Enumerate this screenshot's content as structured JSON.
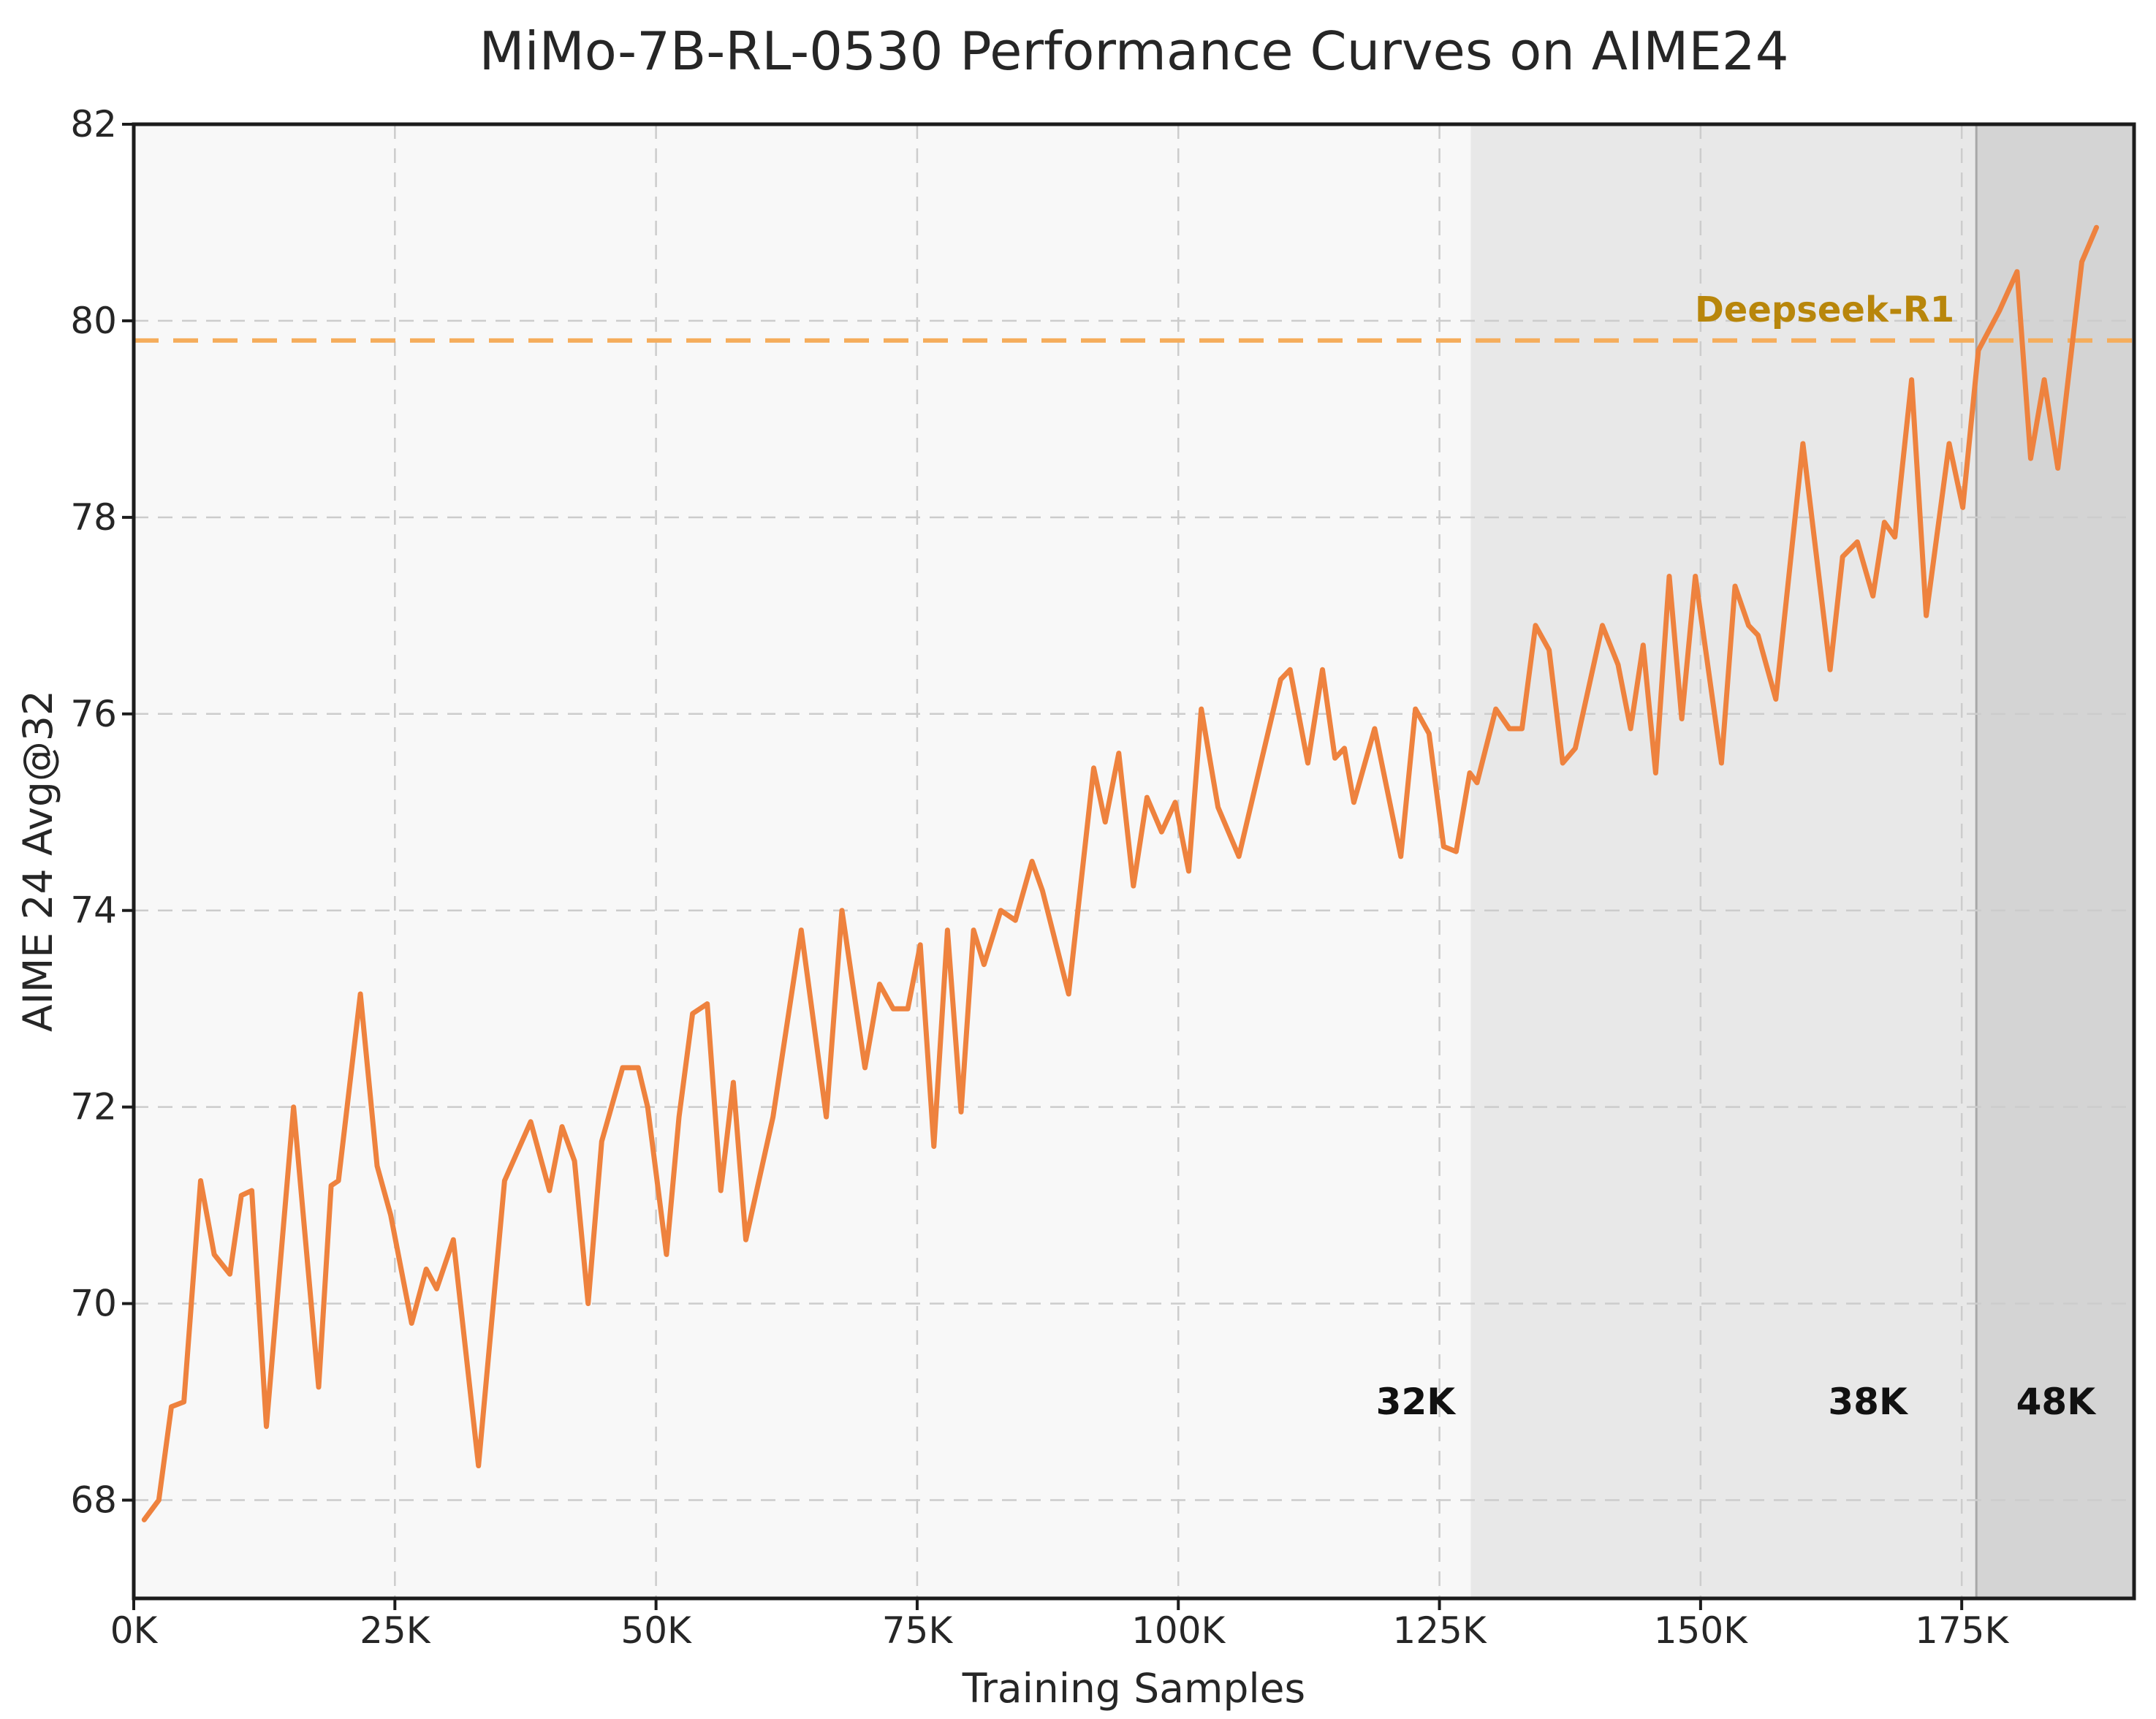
{
  "figure": {
    "title": "MiMo-7B-RL-0530 Performance Curves on AIME24",
    "background_color": "#ffffff",
    "plot_background_color": "#f8f8f8",
    "spine_color": "#1c1c1c",
    "grid_color": "#cccccc",
    "text_color": "#262626"
  },
  "chart_data": {
    "type": "line",
    "title": "MiMo-7B-RL-0530 Performance Curves on AIME24",
    "xlabel": "Training Samples",
    "ylabel": "AIME 24 Avg@32",
    "xlim": [
      0,
      191.5
    ],
    "ylim": [
      67,
      82
    ],
    "grid": true,
    "xticks": {
      "values": [
        0,
        25,
        50,
        75,
        100,
        125,
        150,
        175
      ],
      "labels": [
        "0K",
        "25K",
        "50K",
        "75K",
        "100K",
        "125K",
        "150K",
        "175K"
      ]
    },
    "yticks": [
      68,
      70,
      72,
      74,
      76,
      78,
      80,
      82
    ],
    "series": [
      {
        "name": "MiMo-7B-RL-0530",
        "color": "#ee823e",
        "line_width": 7,
        "points": [
          [
            1,
            67.8
          ],
          [
            2.4,
            68
          ],
          [
            3.6,
            68.95
          ],
          [
            4.8,
            69
          ],
          [
            6.4,
            71.25
          ],
          [
            7.7,
            70.5
          ],
          [
            9.2,
            70.3
          ],
          [
            10.3,
            71.1
          ],
          [
            11.3,
            71.15
          ],
          [
            12.7,
            68.75
          ],
          [
            15.3,
            72
          ],
          [
            17.7,
            69.15
          ],
          [
            18.9,
            71.2
          ],
          [
            19.6,
            71.25
          ],
          [
            21.7,
            73.15
          ],
          [
            23.3,
            71.4
          ],
          [
            24.6,
            70.9
          ],
          [
            26.6,
            69.8
          ],
          [
            28,
            70.35
          ],
          [
            29,
            70.15
          ],
          [
            30.6,
            70.65
          ],
          [
            33,
            68.35
          ],
          [
            35.5,
            71.25
          ],
          [
            38,
            71.85
          ],
          [
            39.8,
            71.15
          ],
          [
            41,
            71.8
          ],
          [
            42.2,
            71.45
          ],
          [
            43.5,
            70
          ],
          [
            44.8,
            71.65
          ],
          [
            46.8,
            72.4
          ],
          [
            48.3,
            72.4
          ],
          [
            49.2,
            72
          ],
          [
            51,
            70.5
          ],
          [
            52.2,
            71.9
          ],
          [
            53.5,
            72.95
          ],
          [
            54.9,
            73.05
          ],
          [
            56.2,
            71.15
          ],
          [
            57.4,
            72.25
          ],
          [
            58.6,
            70.65
          ],
          [
            61.2,
            71.9
          ],
          [
            63.9,
            73.8
          ],
          [
            66.3,
            71.9
          ],
          [
            67.8,
            74
          ],
          [
            70,
            72.4
          ],
          [
            71.4,
            73.25
          ],
          [
            72.7,
            73
          ],
          [
            74.1,
            73
          ],
          [
            75.3,
            73.65
          ],
          [
            76.6,
            71.6
          ],
          [
            77.9,
            73.8
          ],
          [
            79.2,
            71.95
          ],
          [
            80.4,
            73.8
          ],
          [
            81.4,
            73.45
          ],
          [
            83,
            74
          ],
          [
            84.4,
            73.9
          ],
          [
            86,
            74.5
          ],
          [
            87,
            74.2
          ],
          [
            89.5,
            73.15
          ],
          [
            91.9,
            75.45
          ],
          [
            93,
            74.9
          ],
          [
            94.3,
            75.6
          ],
          [
            95.7,
            74.25
          ],
          [
            97,
            75.15
          ],
          [
            98.4,
            74.8
          ],
          [
            99.7,
            75.1
          ],
          [
            101,
            74.4
          ],
          [
            102.2,
            76.05
          ],
          [
            103.8,
            75.05
          ],
          [
            105.8,
            74.55
          ],
          [
            107.9,
            75.5
          ],
          [
            109.8,
            76.35
          ],
          [
            110.7,
            76.45
          ],
          [
            112.4,
            75.5
          ],
          [
            113.8,
            76.45
          ],
          [
            115,
            75.55
          ],
          [
            115.9,
            75.65
          ],
          [
            116.8,
            75.1
          ],
          [
            118.8,
            75.85
          ],
          [
            121.3,
            74.55
          ],
          [
            122.7,
            76.05
          ],
          [
            124,
            75.8
          ],
          [
            125.4,
            74.65
          ],
          [
            126.6,
            74.6
          ],
          [
            127.9,
            75.4
          ],
          [
            128.6,
            75.3
          ],
          [
            130.4,
            76.05
          ],
          [
            131.7,
            75.85
          ],
          [
            132.9,
            75.85
          ],
          [
            134.2,
            76.9
          ],
          [
            135.5,
            76.65
          ],
          [
            136.8,
            75.5
          ],
          [
            138,
            75.65
          ],
          [
            140.6,
            76.9
          ],
          [
            142.1,
            76.5
          ],
          [
            143.3,
            75.85
          ],
          [
            144.5,
            76.7
          ],
          [
            145.7,
            75.4
          ],
          [
            147,
            77.4
          ],
          [
            148.2,
            75.95
          ],
          [
            149.5,
            77.4
          ],
          [
            152,
            75.5
          ],
          [
            153.3,
            77.3
          ],
          [
            154.6,
            76.9
          ],
          [
            155.5,
            76.8
          ],
          [
            157.2,
            76.15
          ],
          [
            159.8,
            78.75
          ],
          [
            162.4,
            76.45
          ],
          [
            163.6,
            77.6
          ],
          [
            165,
            77.75
          ],
          [
            166.5,
            77.2
          ],
          [
            167.6,
            77.95
          ],
          [
            168.6,
            77.8
          ],
          [
            170.2,
            79.4
          ],
          [
            171.6,
            77
          ],
          [
            173.8,
            78.75
          ],
          [
            175.1,
            78.1
          ],
          [
            176.6,
            79.7
          ],
          [
            178.6,
            80.1
          ],
          [
            180.3,
            80.5
          ],
          [
            181.6,
            78.6
          ],
          [
            182.9,
            79.4
          ],
          [
            184.2,
            78.5
          ],
          [
            186.5,
            80.6
          ],
          [
            187.9,
            80.95
          ]
        ]
      }
    ],
    "reference_line": {
      "label": "Deepseek-R1",
      "value": 79.8,
      "line_color": "#f5ad5c",
      "label_color": "#b8860b",
      "label_anchor_x": 174.3
    },
    "regions": [
      {
        "label": "32K",
        "start": 0,
        "end": 128,
        "fill": "none",
        "label_x": 126.5,
        "label_align": "end"
      },
      {
        "label": "38K",
        "start": 128,
        "end": 176.4,
        "fill": "#e8e8e8",
        "label_x": 166,
        "label_align": "middle"
      },
      {
        "label": "48K",
        "start": 176.4,
        "end": 191.5,
        "fill": "#d4d4d4",
        "label_x": 184,
        "label_align": "middle"
      }
    ],
    "region_label_y": 69.0,
    "region_boundary_color": "#a8a8a8",
    "legend_position": "none"
  }
}
